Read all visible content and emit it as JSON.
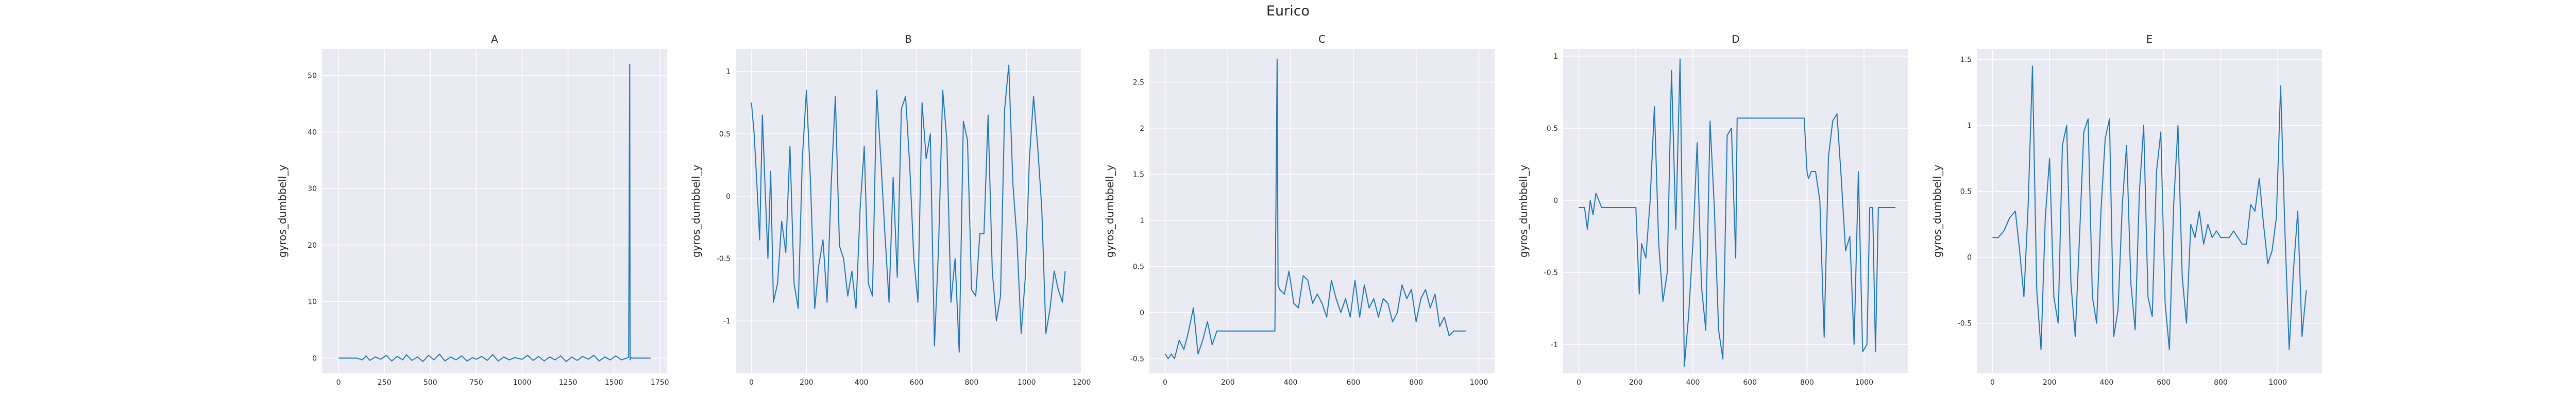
{
  "figure": {
    "suptitle": "Eurico"
  },
  "chart_data": [
    {
      "type": "line",
      "title": "A",
      "xlabel": "",
      "ylabel": "gyros_dumbbell_y",
      "color": "#1f77b4",
      "background": "#eaeaf2",
      "grid": true,
      "xlim": [
        -90,
        1790
      ],
      "ylim": [
        -2.7,
        54.7
      ],
      "xticks": [
        0,
        250,
        500,
        750,
        1000,
        1250,
        1500,
        1750
      ],
      "yticks": [
        0,
        10,
        20,
        30,
        40,
        50
      ],
      "series": [
        {
          "x": [
            0,
            100,
            130,
            150,
            170,
            200,
            230,
            260,
            290,
            320,
            350,
            370,
            400,
            430,
            460,
            490,
            520,
            550,
            580,
            610,
            640,
            670,
            700,
            730,
            750,
            780,
            810,
            840,
            870,
            900,
            930,
            960,
            1000,
            1030,
            1060,
            1090,
            1120,
            1150,
            1180,
            1210,
            1240,
            1270,
            1300,
            1330,
            1360,
            1390,
            1420,
            1450,
            1480,
            1510,
            1540,
            1570,
            1580,
            1586,
            1588,
            1592,
            1600,
            1650,
            1700
          ],
          "y": [
            0,
            0,
            -0.3,
            0.4,
            -0.4,
            0.2,
            -0.2,
            0.5,
            -0.5,
            0.3,
            -0.3,
            0.6,
            -0.4,
            0.2,
            -0.6,
            0.5,
            -0.3,
            0.7,
            -0.5,
            0.2,
            -0.3,
            0.4,
            -0.5,
            0.1,
            -0.2,
            0.3,
            -0.4,
            0.6,
            -0.5,
            0.2,
            -0.3,
            0.1,
            -0.2,
            0.5,
            -0.4,
            0.3,
            -0.5,
            0.2,
            -0.3,
            0.4,
            -0.6,
            0.2,
            -0.4,
            0.3,
            -0.2,
            0.5,
            -0.5,
            0.2,
            -0.3,
            0.4,
            -0.3,
            0,
            0.2,
            52,
            -0.3,
            0.1,
            0,
            0,
            0
          ]
        }
      ]
    },
    {
      "type": "line",
      "title": "B",
      "xlabel": "",
      "ylabel": "gyros_dumbbell_y",
      "color": "#1f77b4",
      "background": "#eaeaf2",
      "grid": true,
      "xlim": [
        -57,
        1197
      ],
      "ylim": [
        -1.42,
        1.18
      ],
      "xticks": [
        0,
        200,
        400,
        600,
        800,
        1000,
        1200
      ],
      "yticks": [
        -1.0,
        -0.5,
        0.0,
        0.5,
        1.0
      ],
      "series": [
        {
          "x": [
            0,
            10,
            20,
            30,
            40,
            50,
            60,
            70,
            80,
            95,
            110,
            125,
            140,
            155,
            170,
            185,
            200,
            215,
            230,
            245,
            260,
            275,
            290,
            305,
            320,
            335,
            350,
            365,
            380,
            395,
            410,
            425,
            440,
            455,
            470,
            485,
            500,
            515,
            530,
            545,
            560,
            575,
            590,
            605,
            620,
            635,
            650,
            665,
            680,
            695,
            710,
            725,
            740,
            755,
            770,
            785,
            800,
            815,
            830,
            845,
            860,
            875,
            890,
            905,
            920,
            935,
            950,
            965,
            980,
            995,
            1010,
            1025,
            1040,
            1055,
            1070,
            1085,
            1100,
            1115,
            1130,
            1140
          ],
          "y": [
            0.75,
            0.5,
            0.1,
            -0.35,
            0.65,
            0.05,
            -0.5,
            0.2,
            -0.85,
            -0.7,
            -0.2,
            -0.45,
            0.4,
            -0.7,
            -0.9,
            0.3,
            0.85,
            0.1,
            -0.9,
            -0.55,
            -0.35,
            -0.85,
            0.1,
            0.8,
            -0.4,
            -0.5,
            -0.8,
            -0.6,
            -0.9,
            -0.1,
            0.4,
            -0.7,
            -0.8,
            0.85,
            0.3,
            -0.3,
            -0.85,
            0.15,
            -0.65,
            0.7,
            0.8,
            0.25,
            -0.5,
            -0.85,
            0.75,
            0.3,
            0.5,
            -1.2,
            -0.4,
            0.85,
            0.45,
            -0.85,
            -0.5,
            -1.25,
            0.6,
            0.45,
            -0.75,
            -0.8,
            -0.3,
            -0.3,
            0.65,
            -0.6,
            -1.0,
            -0.8,
            0.7,
            1.05,
            0.1,
            -0.35,
            -1.1,
            -0.65,
            0.3,
            0.8,
            0.4,
            -0.1,
            -1.1,
            -0.9,
            -0.6,
            -0.75,
            -0.85,
            -0.6
          ]
        }
      ]
    },
    {
      "type": "line",
      "title": "C",
      "xlabel": "",
      "ylabel": "gyros_dumbbell_y",
      "color": "#1f77b4",
      "background": "#eaeaf2",
      "grid": true,
      "xlim": [
        -50,
        1050
      ],
      "ylim": [
        -0.66,
        2.86
      ],
      "xticks": [
        0,
        200,
        400,
        600,
        800,
        1000
      ],
      "yticks": [
        -0.5,
        0.0,
        0.5,
        1.0,
        1.5,
        2.0,
        2.5
      ],
      "series": [
        {
          "x": [
            0,
            10,
            20,
            30,
            45,
            60,
            75,
            90,
            105,
            120,
            135,
            150,
            165,
            180,
            200,
            250,
            300,
            350,
            357,
            360,
            365,
            380,
            395,
            410,
            425,
            440,
            455,
            470,
            485,
            500,
            515,
            530,
            545,
            560,
            575,
            590,
            605,
            620,
            635,
            650,
            665,
            680,
            695,
            710,
            725,
            740,
            755,
            770,
            785,
            800,
            815,
            830,
            845,
            860,
            875,
            890,
            905,
            920,
            940,
            960
          ],
          "y": [
            -0.45,
            -0.5,
            -0.45,
            -0.5,
            -0.3,
            -0.4,
            -0.2,
            0.05,
            -0.45,
            -0.3,
            -0.1,
            -0.35,
            -0.2,
            -0.2,
            -0.2,
            -0.2,
            -0.2,
            -0.2,
            2.75,
            0.3,
            0.25,
            0.2,
            0.45,
            0.1,
            0.05,
            0.4,
            0.35,
            0.1,
            0.2,
            0.1,
            -0.05,
            0.35,
            0.15,
            0.0,
            0.15,
            -0.05,
            0.35,
            -0.05,
            0.3,
            0.05,
            0.15,
            -0.05,
            0.15,
            0.1,
            -0.1,
            0.0,
            0.3,
            0.15,
            0.25,
            -0.1,
            0.15,
            0.25,
            0.05,
            0.2,
            -0.15,
            -0.05,
            -0.25,
            -0.2,
            -0.2,
            -0.2
          ]
        }
      ]
    },
    {
      "type": "line",
      "title": "D",
      "xlabel": "",
      "ylabel": "gyros_dumbbell_y",
      "color": "#1f77b4",
      "background": "#eaeaf2",
      "grid": true,
      "xlim": [
        -55,
        1155
      ],
      "ylim": [
        -1.2,
        1.05
      ],
      "xticks": [
        0,
        200,
        400,
        600,
        800,
        1000
      ],
      "yticks": [
        -1.0,
        -0.5,
        0.0,
        0.5,
        1.0
      ],
      "series": [
        {
          "x": [
            0,
            20,
            30,
            40,
            50,
            60,
            70,
            80,
            100,
            120,
            140,
            160,
            180,
            200,
            212,
            220,
            235,
            250,
            265,
            280,
            295,
            310,
            325,
            340,
            355,
            370,
            385,
            400,
            415,
            430,
            445,
            460,
            475,
            490,
            505,
            520,
            535,
            550,
            555,
            600,
            700,
            790,
            800,
            805,
            815,
            830,
            845,
            860,
            875,
            890,
            905,
            920,
            935,
            950,
            965,
            980,
            995,
            1010,
            1020,
            1030,
            1040,
            1050,
            1060,
            1070,
            1090,
            1110
          ],
          "y": [
            -0.05,
            -0.05,
            -0.2,
            0.0,
            -0.1,
            0.05,
            0.0,
            -0.05,
            -0.05,
            -0.05,
            -0.05,
            -0.05,
            -0.05,
            -0.05,
            -0.65,
            -0.3,
            -0.4,
            0.0,
            0.65,
            -0.3,
            -0.7,
            -0.5,
            0.9,
            -0.2,
            0.98,
            -1.15,
            -0.8,
            -0.3,
            0.4,
            -0.6,
            -0.9,
            0.55,
            -0.05,
            -0.9,
            -1.1,
            0.45,
            0.5,
            -0.4,
            0.57,
            0.57,
            0.57,
            0.57,
            0.2,
            0.15,
            0.2,
            0.2,
            0.0,
            -0.95,
            0.3,
            0.55,
            0.6,
            0.15,
            -0.35,
            -0.25,
            -1.0,
            0.2,
            -1.05,
            -1.0,
            -0.05,
            -0.05,
            -1.05,
            -0.05,
            -0.05,
            -0.05,
            -0.05,
            -0.05
          ]
        }
      ]
    },
    {
      "type": "line",
      "title": "E",
      "xlabel": "",
      "ylabel": "gyros_dumbbell_y",
      "color": "#1f77b4",
      "background": "#eaeaf2",
      "grid": true,
      "xlim": [
        -55,
        1155
      ],
      "ylim": [
        -0.88,
        1.58
      ],
      "xticks": [
        0,
        200,
        400,
        600,
        800,
        1000
      ],
      "yticks": [
        -0.5,
        0.0,
        0.5,
        1.0,
        1.5
      ],
      "series": [
        {
          "x": [
            0,
            20,
            40,
            60,
            80,
            95,
            110,
            125,
            140,
            155,
            170,
            185,
            200,
            215,
            230,
            245,
            260,
            275,
            290,
            305,
            320,
            335,
            350,
            365,
            380,
            395,
            410,
            425,
            440,
            455,
            470,
            485,
            500,
            515,
            530,
            545,
            560,
            575,
            590,
            605,
            620,
            635,
            650,
            665,
            680,
            695,
            710,
            725,
            740,
            755,
            770,
            785,
            800,
            815,
            830,
            845,
            860,
            875,
            890,
            905,
            920,
            935,
            950,
            965,
            980,
            995,
            1010,
            1025,
            1040,
            1055,
            1070,
            1085,
            1100
          ],
          "y": [
            0.15,
            0.15,
            0.2,
            0.3,
            0.35,
            0.05,
            -0.3,
            0.4,
            1.45,
            -0.25,
            -0.7,
            0.3,
            0.75,
            -0.3,
            -0.5,
            0.85,
            1.0,
            -0.2,
            -0.6,
            0.15,
            0.95,
            1.05,
            -0.3,
            -0.5,
            0.35,
            0.9,
            1.05,
            -0.6,
            -0.4,
            0.4,
            0.85,
            -0.2,
            -0.55,
            0.5,
            1.0,
            -0.3,
            -0.45,
            0.65,
            0.95,
            -0.35,
            -0.7,
            0.4,
            1.0,
            -0.15,
            -0.5,
            0.25,
            0.15,
            0.35,
            0.1,
            0.25,
            0.15,
            0.2,
            0.15,
            0.15,
            0.15,
            0.2,
            0.15,
            0.1,
            0.1,
            0.4,
            0.35,
            0.6,
            0.25,
            -0.05,
            0.05,
            0.3,
            1.3,
            0.2,
            -0.7,
            -0.1,
            0.35,
            -0.6,
            -0.25
          ]
        }
      ]
    }
  ]
}
